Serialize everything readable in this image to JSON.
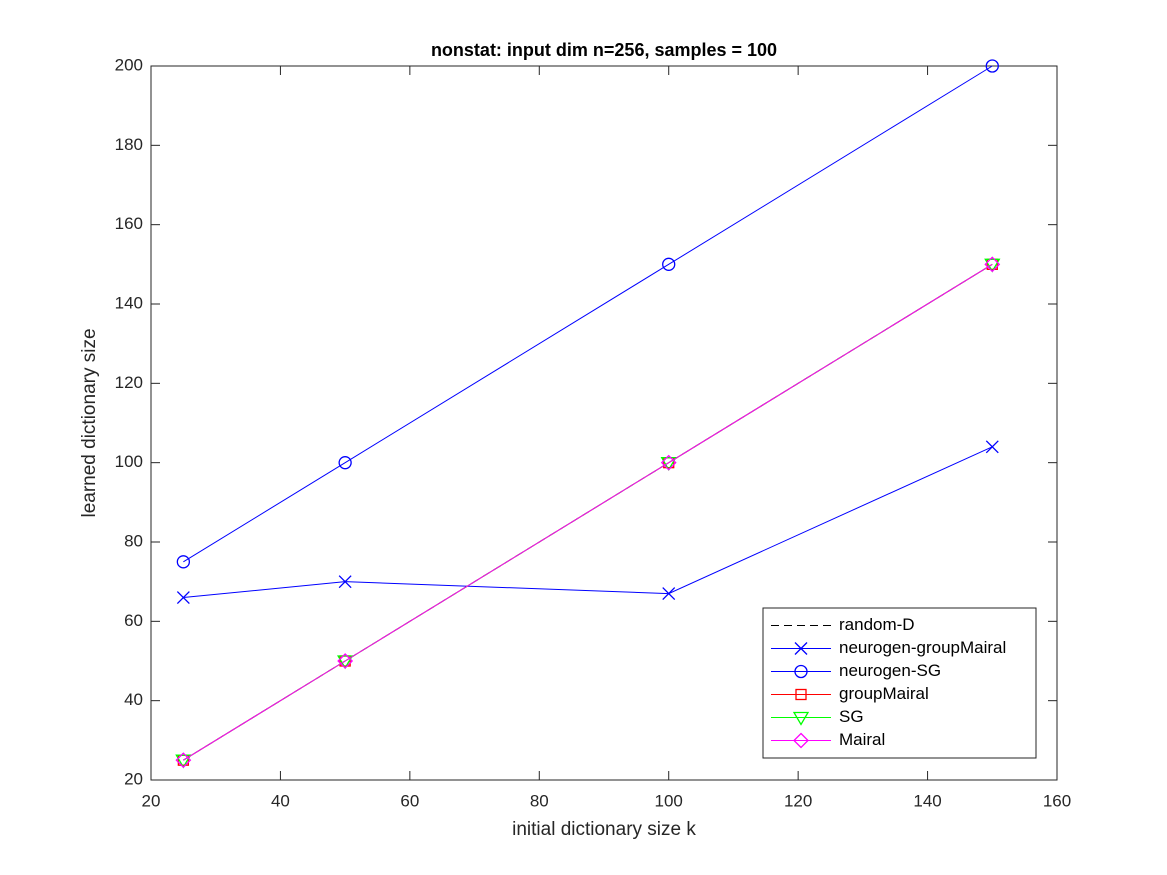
{
  "chart_data": {
    "type": "line",
    "title": "nonstat: input dim n=256, samples = 100",
    "xlabel": "initial dictionary size k",
    "ylabel": "learned dictionary size",
    "x": [
      25,
      50,
      100,
      150
    ],
    "series": [
      {
        "name": "random-D",
        "color": "#000000",
        "linestyle": "--",
        "marker": "none",
        "values": [
          25,
          50,
          100,
          150
        ]
      },
      {
        "name": "neurogen-groupMairal",
        "color": "#0000ff",
        "linestyle": "-",
        "marker": "x",
        "values": [
          66,
          70,
          67,
          104
        ]
      },
      {
        "name": "neurogen-SG",
        "color": "#0000ff",
        "linestyle": "-",
        "marker": "o",
        "values": [
          75,
          100,
          150,
          200
        ]
      },
      {
        "name": "groupMairal",
        "color": "#ff0000",
        "linestyle": "-",
        "marker": "s",
        "values": [
          25,
          50,
          100,
          150
        ]
      },
      {
        "name": "SG",
        "color": "#00ff00",
        "linestyle": "-",
        "marker": "v",
        "values": [
          25,
          50,
          100,
          150
        ]
      },
      {
        "name": "Mairal",
        "color": "#ff00ff",
        "linestyle": "-",
        "marker": "d",
        "values": [
          25,
          50,
          100,
          150
        ]
      }
    ],
    "xlim": [
      20,
      160
    ],
    "xticks": [
      20,
      40,
      60,
      80,
      100,
      120,
      140,
      160
    ],
    "ylim": [
      20,
      200
    ],
    "yticks": [
      20,
      40,
      60,
      80,
      100,
      120,
      140,
      160,
      180,
      200
    ],
    "legend": "lower right",
    "grid": false
  }
}
